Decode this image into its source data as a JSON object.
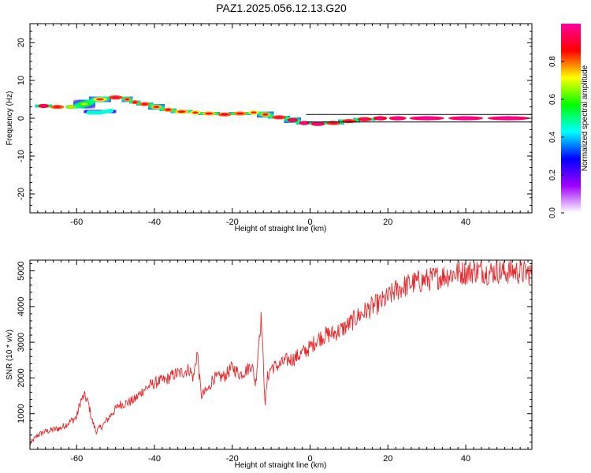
{
  "title": "PAZ1.2025.056.12.13.G20",
  "chart_data": [
    {
      "type": "heatmap",
      "xlabel": "Height of straight line (km)",
      "ylabel": "Frequency (Hz)",
      "xlim": [
        -72,
        57
      ],
      "ylim": [
        -25,
        25
      ],
      "xticks": [
        -60,
        -40,
        -20,
        0,
        20,
        40
      ],
      "yticks": [
        -20,
        -10,
        0,
        10,
        20
      ],
      "colorbar": {
        "label": "Normalized spectral amplitude",
        "range": [
          0,
          1
        ],
        "ticks": [
          "0.0",
          "0.2",
          "0.4",
          "0.6",
          "0.8"
        ],
        "colors": [
          "#ffffff",
          "#a000ff",
          "#0000ff",
          "#00ffff",
          "#00ff00",
          "#ffff00",
          "#ff0000",
          "#ff00a0"
        ]
      },
      "ridge": {
        "x": [
          -70,
          -67,
          -63,
          -60,
          -56,
          -52,
          -48,
          -46,
          -44,
          -41,
          -38,
          -35,
          -31,
          -28,
          -24,
          -20,
          -16,
          -13,
          -10,
          -6,
          -3,
          0,
          4,
          8,
          12,
          16,
          20,
          25,
          35,
          45,
          57
        ],
        "y": [
          3.5,
          3,
          3,
          3,
          4.5,
          5.5,
          5.5,
          4.5,
          4,
          3.5,
          2.5,
          2,
          1.5,
          1.5,
          1,
          1,
          1.5,
          1.5,
          0.5,
          0,
          -1,
          -1.5,
          -1.5,
          -1,
          -0.5,
          0,
          0,
          0,
          0,
          0,
          0
        ],
        "amplitude": [
          0.9,
          0.85,
          0.75,
          0.5,
          0.65,
          0.8,
          0.85,
          0.7,
          0.9,
          0.7,
          0.8,
          0.75,
          0.75,
          0.7,
          0.8,
          0.8,
          0.75,
          0.7,
          0.8,
          0.85,
          0.9,
          0.95,
          0.85,
          0.8,
          0.85,
          0.85,
          0.9,
          0.95,
          0.95,
          0.95,
          0.95
        ]
      },
      "secondary_blob": {
        "x": [
          -57,
          -54,
          -51
        ],
        "y": [
          1.5,
          1.5,
          2
        ],
        "amplitude": 0.45
      },
      "reference_line": {
        "x": [
          -1,
          57
        ],
        "y": [
          1,
          -1
        ],
        "color": "#000000"
      }
    },
    {
      "type": "line",
      "xlabel": "Height of straight line (km)",
      "ylabel": "SNR (10 * v/v)",
      "xlim": [
        -72,
        57
      ],
      "ylim": [
        0,
        5300
      ],
      "xticks": [
        -60,
        -40,
        -20,
        0,
        20,
        40
      ],
      "yticks": [
        1000,
        2000,
        3000,
        4000,
        5000
      ],
      "color": "#e8282a",
      "series": [
        {
          "x": [
            -72,
            -70,
            -68,
            -66,
            -64,
            -62,
            -60,
            -59,
            -58,
            -57,
            -56,
            -55,
            -53,
            -51,
            -49,
            -47,
            -45,
            -43,
            -41,
            -39,
            -37,
            -35,
            -33,
            -31,
            -30,
            -29,
            -28,
            -27,
            -26,
            -25,
            -24,
            -22,
            -20,
            -18,
            -16,
            -15,
            -14,
            -13,
            -12.5,
            -12,
            -11.5,
            -11,
            -10,
            -8,
            -6,
            -4,
            -2,
            0,
            2,
            4,
            6,
            8,
            10,
            12,
            14,
            16,
            18,
            20,
            22,
            24,
            26,
            28,
            30,
            32,
            34,
            36,
            38,
            40,
            42,
            44,
            46,
            48,
            50,
            52,
            54,
            56,
            57
          ],
          "y": [
            150,
            400,
            500,
            550,
            600,
            750,
            900,
            1350,
            1500,
            1300,
            800,
            500,
            700,
            1000,
            1250,
            1300,
            1400,
            1650,
            1800,
            1900,
            1950,
            2100,
            2150,
            2250,
            2000,
            2750,
            1500,
            1600,
            1700,
            2000,
            2000,
            2050,
            2300,
            2100,
            2250,
            2400,
            1800,
            3300,
            3700,
            2300,
            1200,
            2000,
            2300,
            2350,
            2500,
            2550,
            2700,
            2850,
            3100,
            3200,
            3250,
            3350,
            3500,
            3700,
            3850,
            4000,
            4100,
            4250,
            4450,
            4550,
            4650,
            4700,
            4750,
            4800,
            4850,
            4900,
            4950,
            4950,
            5000,
            5000,
            4950,
            5000,
            4950,
            5000,
            4950,
            4950,
            4950
          ]
        }
      ]
    }
  ]
}
